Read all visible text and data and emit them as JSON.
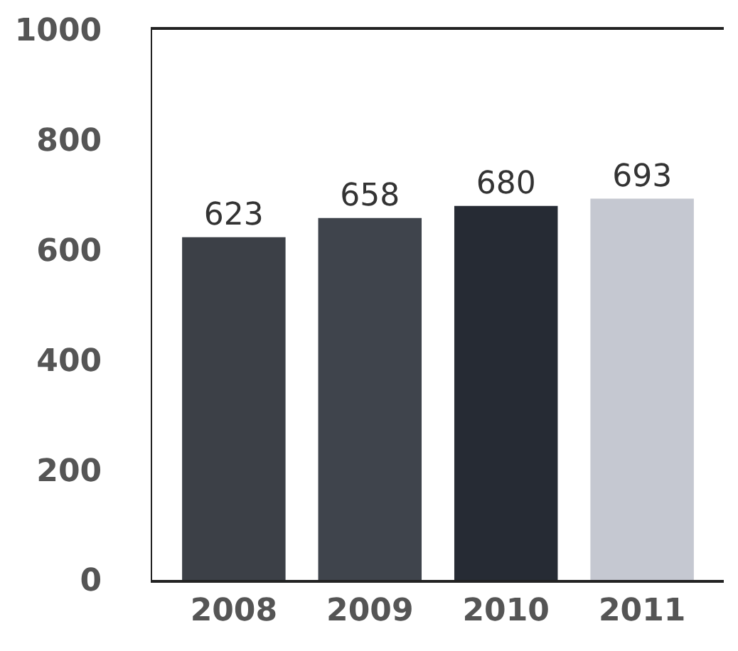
{
  "chart_data": {
    "type": "bar",
    "categories": [
      "2008",
      "2009",
      "2010",
      "2011"
    ],
    "values": [
      623,
      658,
      680,
      693
    ],
    "colors": [
      "#3c4047",
      "#3f444c",
      "#262b34",
      "#c5c8d1"
    ],
    "ylim": [
      0,
      1000
    ],
    "yticks": [
      0,
      200,
      400,
      600,
      800,
      1000
    ],
    "data_labels": true,
    "legend": false
  }
}
